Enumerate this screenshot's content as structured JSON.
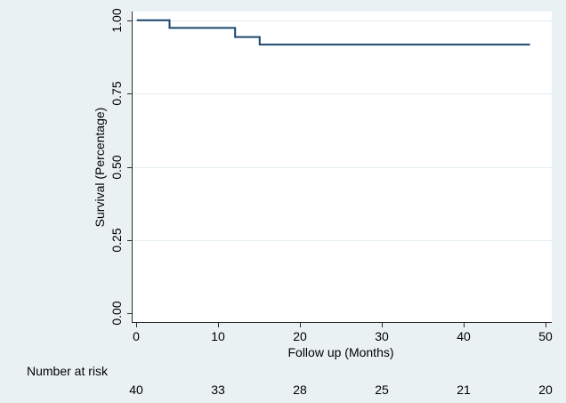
{
  "colors": {
    "background": "#eaf1f3",
    "plot_background": "#ffffff",
    "curve": "#1a476f",
    "axis": "#2b2b2b",
    "gridline": "#e2edf0"
  },
  "y_axis": {
    "title": "Survival (Percentage)",
    "tick_labels_top_to_bottom": [
      "1.00",
      "0.75",
      "0.50",
      "0.25",
      "0.00"
    ]
  },
  "x_axis": {
    "title": "Follow up (Months)",
    "tick_labels": [
      "0",
      "10",
      "20",
      "30",
      "40",
      "50"
    ]
  },
  "risk_table": {
    "label": "Number at risk",
    "counts": [
      "40",
      "33",
      "28",
      "25",
      "21",
      "20"
    ]
  },
  "chart_data": {
    "type": "line",
    "subtype": "kaplan-meier-step-function",
    "title": "",
    "xlabel": "Follow up (Months)",
    "ylabel": "Survival (Percentage)",
    "xlim": [
      0,
      50
    ],
    "ylim": [
      0.0,
      1.0
    ],
    "x_ticks": [
      0,
      10,
      20,
      30,
      40,
      50
    ],
    "y_ticks": [
      0.0,
      0.25,
      0.5,
      0.75,
      1.0
    ],
    "grid": true,
    "legend": false,
    "series": [
      {
        "name": "Survival",
        "color": "#1a476f",
        "step_points": [
          [
            0,
            1.0
          ],
          [
            4,
            1.0
          ],
          [
            4,
            0.974
          ],
          [
            12,
            0.974
          ],
          [
            12,
            0.943
          ],
          [
            15,
            0.943
          ],
          [
            15,
            0.917
          ],
          [
            48,
            0.917
          ]
        ],
        "event_times_months": [
          4,
          12,
          15
        ],
        "survival_levels": [
          1.0,
          0.974,
          0.943,
          0.917
        ]
      }
    ],
    "number_at_risk": {
      "label": "Number at risk",
      "times": [
        0,
        10,
        20,
        30,
        40,
        50
      ],
      "counts": [
        40,
        33,
        28,
        25,
        21,
        20
      ]
    }
  }
}
